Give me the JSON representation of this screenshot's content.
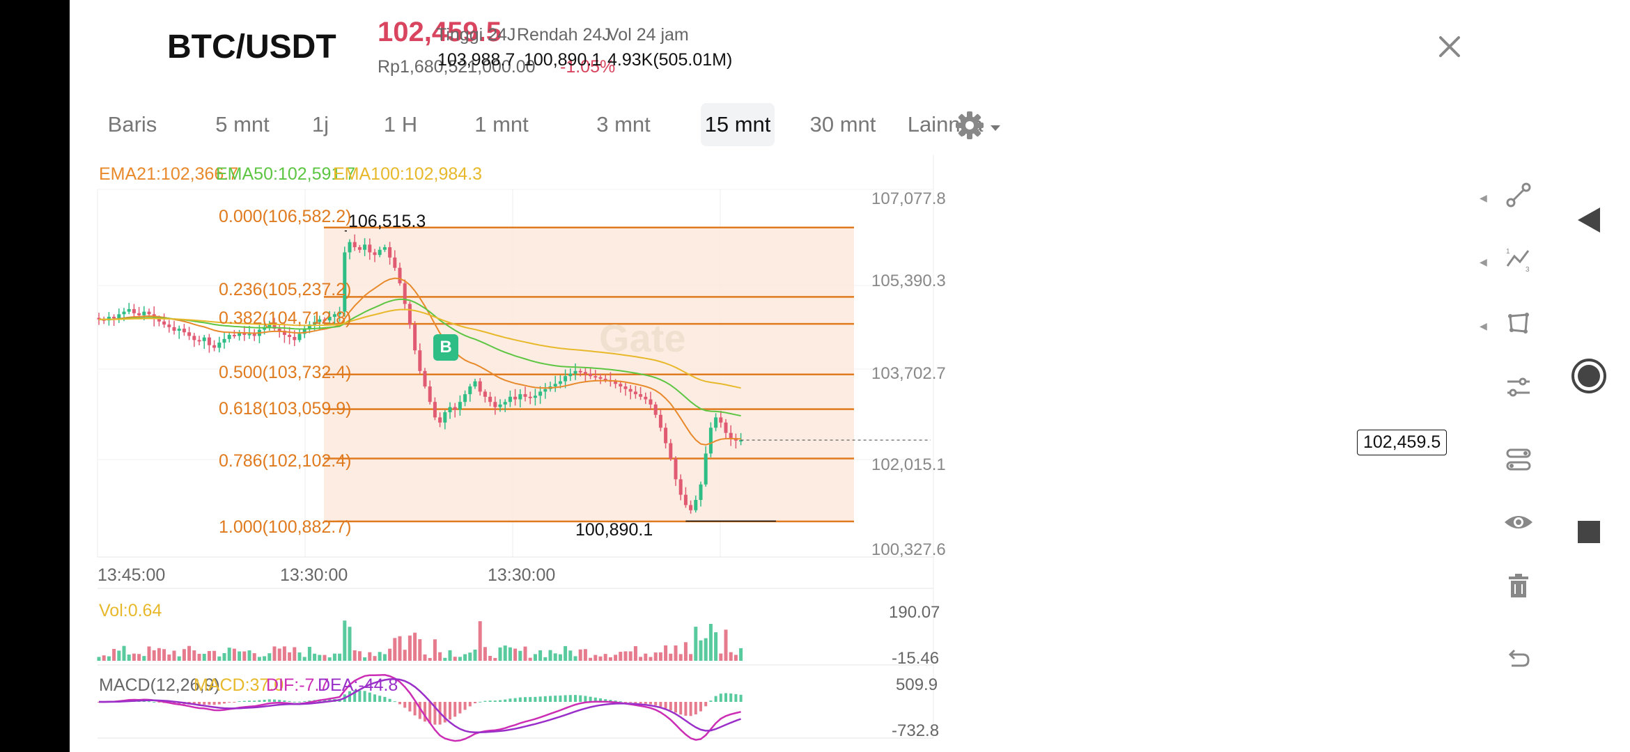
{
  "header": {
    "pair": "BTC/USDT",
    "price": "102,459.5",
    "price_rp": "Rp1,680,521,000.00",
    "change": "-1.05%",
    "stats": [
      {
        "label": "Tinggi 24J",
        "value": "103,988.7"
      },
      {
        "label": "Rendah 24J",
        "value": "100,890.1"
      },
      {
        "label": "Vol 24 jam",
        "value": "4.93K(505.01M)"
      }
    ]
  },
  "tabs": [
    {
      "label": "Baris",
      "active": false
    },
    {
      "label": "5 mnt",
      "active": false
    },
    {
      "label": "1j",
      "active": false
    },
    {
      "label": "1 H",
      "active": false
    },
    {
      "label": "1 mnt",
      "active": false
    },
    {
      "label": "3 mnt",
      "active": false
    },
    {
      "label": "15 mnt",
      "active": true
    },
    {
      "label": "30 mnt",
      "active": false
    }
  ],
  "more_tab": "Lainnya",
  "indicators": {
    "ema21": "EMA21:102,366.7",
    "ema50": "EMA50:102,591.7",
    "ema100": "EMA100:102,984.3",
    "vol": "Vol:0.64",
    "macd_name": "MACD(12,26,9)",
    "macd": "MACD:37.0",
    "dif": "DIF:-7.7",
    "dea": "DEA:-44.8"
  },
  "colors": {
    "ema21": "#e8892b",
    "ema50": "#5cc542",
    "ema100": "#e8b82b",
    "fib": "#e07a1e",
    "up": "#2ebd85",
    "down": "#e05a72",
    "dif": "#cc2db5",
    "dea": "#9a2ec9"
  },
  "price_axis": [
    "107,077.8",
    "105,390.3",
    "103,702.7",
    "102,015.1",
    "100,327.6"
  ],
  "vol_axis": [
    "190.07",
    "-15.46"
  ],
  "macd_axis": [
    "509.9",
    "-732.8"
  ],
  "time_axis": [
    "13:45:00",
    "13:30:00",
    "13:30:00"
  ],
  "fib_levels": [
    {
      "label": "0.000(106,582.2)",
      "value": 106582.2
    },
    {
      "label": "0.236(105,237.2)",
      "value": 105237.2
    },
    {
      "label": "0.382(104,712.8)",
      "value": 104712.8
    },
    {
      "label": "0.500(103,732.4)",
      "value": 103732.4
    },
    {
      "label": "0.618(103,059.9)",
      "value": 103059.9
    },
    {
      "label": "0.786(102,102.4)",
      "value": 102102.4
    },
    {
      "label": "1.000(100,882.7)",
      "value": 100882.7
    }
  ],
  "annotations": {
    "high": "106,515.3",
    "low": "100,890.1",
    "current": "102,459.5",
    "marker": "B"
  },
  "watermark": "Gate",
  "tools": [
    "draw-line-icon",
    "indicator-icon",
    "shape-icon",
    "settings-slider-icon",
    "layout-icon",
    "visibility-icon",
    "trash-icon",
    "undo-icon"
  ],
  "navbar": [
    "back-icon",
    "home-icon",
    "recents-icon"
  ],
  "chart_data": {
    "type": "candlestick",
    "symbol": "BTC/USDT",
    "interval": "15 mnt",
    "ylim": [
      100327.6,
      107077.8
    ],
    "high_marker": 106515.3,
    "low_marker": 100890.1,
    "current": 102459.5,
    "closes": [
      104800,
      104780,
      104850,
      104820,
      104900,
      104950,
      105000,
      104920,
      104880,
      104950,
      104900,
      104820,
      104760,
      104700,
      104650,
      104580,
      104620,
      104550,
      104480,
      104400,
      104380,
      104450,
      104300,
      104250,
      104350,
      104420,
      104500,
      104480,
      104550,
      104500,
      104520,
      104480,
      104600,
      104650,
      104700,
      104620,
      104580,
      104500,
      104460,
      104400,
      104520,
      104620,
      104700,
      104750,
      104800,
      104780,
      104850,
      104900,
      104950,
      106100,
      106300,
      106200,
      106150,
      106250,
      106100,
      106050,
      106150,
      106200,
      106000,
      105800,
      105500,
      105100,
      104700,
      104200,
      103800,
      103500,
      103200,
      102900,
      102800,
      103000,
      103100,
      103050,
      103200,
      103350,
      103500,
      103600,
      103400,
      103300,
      103200,
      103100,
      103150,
      103200,
      103300,
      103250,
      103350,
      103300,
      103280,
      103320,
      103400,
      103450,
      103500,
      103550,
      103600,
      103700,
      103750,
      103800,
      103780,
      103750,
      103700,
      103680,
      103650,
      103620,
      103600,
      103550,
      103500,
      103450,
      103400,
      103350,
      103300,
      103250,
      103150,
      102950,
      102700,
      102400,
      102100,
      101700,
      101400,
      101200,
      101100,
      101300,
      101600,
      102200,
      102700,
      102900,
      102800,
      102600,
      102500,
      102450,
      102460
    ]
  }
}
